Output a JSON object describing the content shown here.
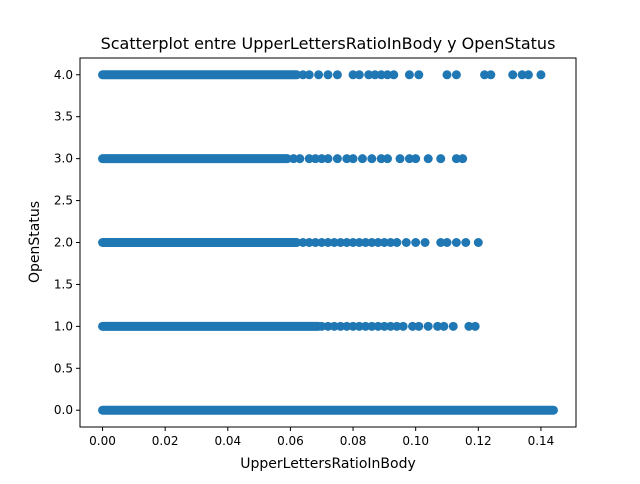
{
  "chart_data": {
    "type": "scatter",
    "title": "Scatterplot entre UpperLettersRatioInBody y OpenStatus",
    "xlabel": "UpperLettersRatioInBody",
    "ylabel": "OpenStatus",
    "xlim": [
      -0.0072,
      0.1512
    ],
    "ylim": [
      -0.2,
      4.2
    ],
    "xticks": [
      "0.00",
      "0.02",
      "0.04",
      "0.06",
      "0.08",
      "0.10",
      "0.12",
      "0.14"
    ],
    "yticks": [
      "0.0",
      "0.5",
      "1.0",
      "1.5",
      "2.0",
      "2.5",
      "3.0",
      "3.5",
      "4.0"
    ],
    "grid": false,
    "marker_color": "#1f77b4",
    "series": [
      {
        "y": 0,
        "x_dense_range": [
          0.0,
          0.144
        ],
        "x": []
      },
      {
        "y": 1,
        "x_dense_range": [
          0.0,
          0.069
        ],
        "x": [
          0.07,
          0.072,
          0.074,
          0.076,
          0.078,
          0.08,
          0.082,
          0.084,
          0.086,
          0.088,
          0.09,
          0.092,
          0.094,
          0.096,
          0.099,
          0.101,
          0.104,
          0.107,
          0.109,
          0.112,
          0.117,
          0.119
        ]
      },
      {
        "y": 2,
        "x_dense_range": [
          0.0,
          0.062
        ],
        "x": [
          0.064,
          0.066,
          0.068,
          0.07,
          0.072,
          0.074,
          0.076,
          0.078,
          0.08,
          0.082,
          0.084,
          0.086,
          0.088,
          0.09,
          0.092,
          0.094,
          0.097,
          0.1,
          0.103,
          0.108,
          0.11,
          0.113,
          0.116,
          0.12
        ]
      },
      {
        "y": 3,
        "x_dense_range": [
          0.0,
          0.059
        ],
        "x": [
          0.061,
          0.063,
          0.066,
          0.068,
          0.07,
          0.072,
          0.075,
          0.078,
          0.08,
          0.083,
          0.086,
          0.089,
          0.091,
          0.095,
          0.098,
          0.1,
          0.104,
          0.108,
          0.113,
          0.115
        ]
      },
      {
        "y": 4,
        "x_dense_range": [
          0.0,
          0.062
        ],
        "x": [
          0.064,
          0.066,
          0.069,
          0.072,
          0.075,
          0.08,
          0.082,
          0.085,
          0.087,
          0.089,
          0.091,
          0.093,
          0.098,
          0.101,
          0.11,
          0.113,
          0.122,
          0.124,
          0.131,
          0.134,
          0.136,
          0.14
        ]
      }
    ]
  }
}
